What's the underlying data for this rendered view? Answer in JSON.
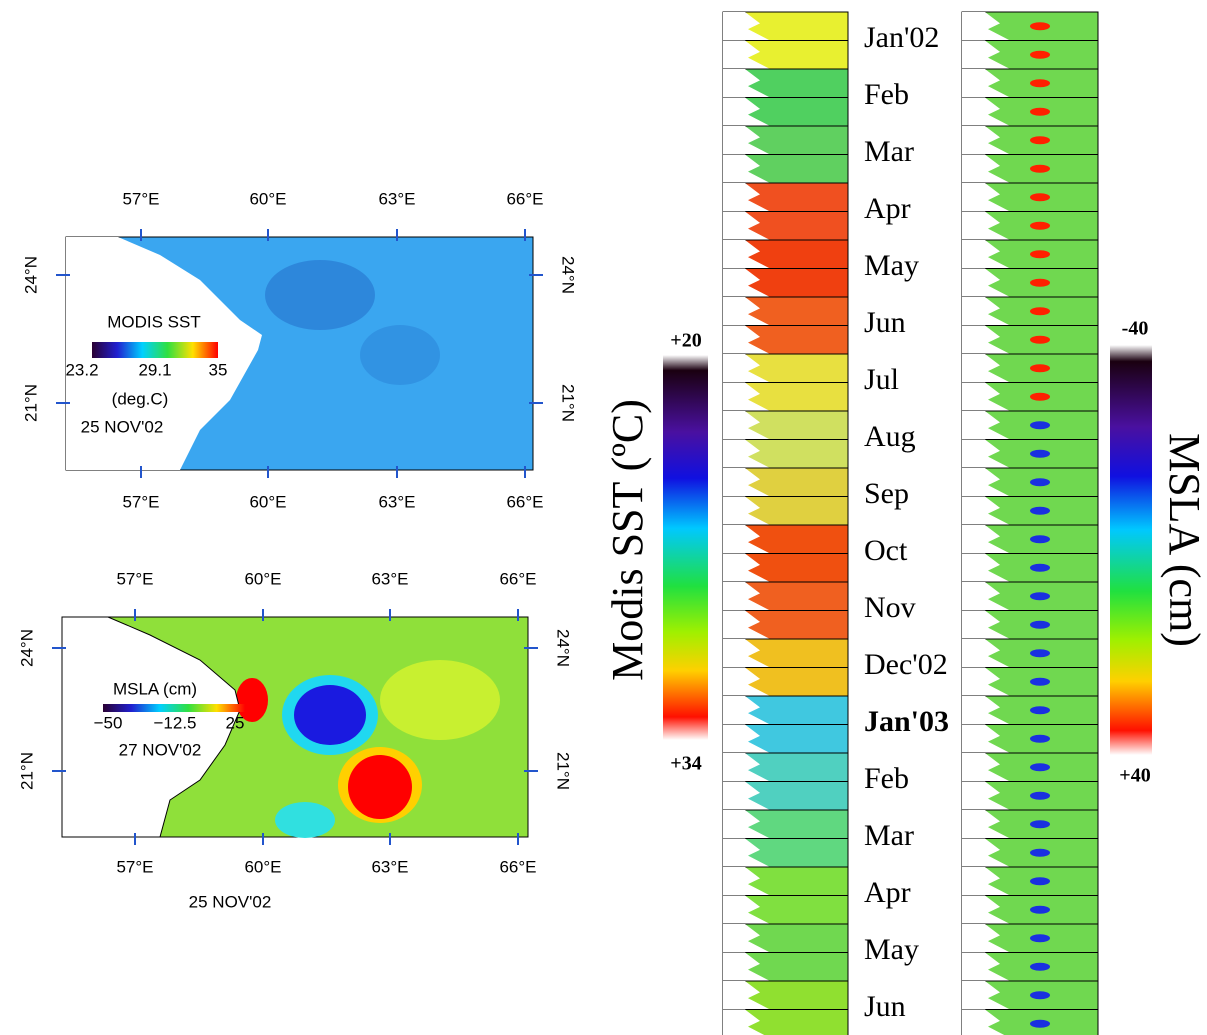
{
  "sst_map": {
    "title": "MODIS SST",
    "colorbar_labels": [
      "23.2",
      "29.1",
      "35"
    ],
    "unit": "(deg.C)",
    "date": "25 NOV'02",
    "lon_labels": [
      "57°E",
      "60°E",
      "63°E",
      "66°E"
    ],
    "lat_labels": [
      "24°N",
      "21°N"
    ]
  },
  "msla_map": {
    "title": "MSLA (cm)",
    "colorbar_labels": [
      "−50",
      "−12.5",
      "25"
    ],
    "date": "27 NOV'02",
    "caption": "25 NOV'02",
    "lon_labels": [
      "57°E",
      "60°E",
      "63°E",
      "66°E"
    ],
    "lat_labels": [
      "24°N",
      "21°N"
    ]
  },
  "sst_colorbar": {
    "label": "Modis SST (ºC)",
    "top": "+20",
    "bottom": "+34"
  },
  "msla_colorbar": {
    "label": "MSLA (cm)",
    "top": "-40",
    "bottom": "+40"
  },
  "months": [
    "Jan'02",
    "Feb",
    "Mar",
    "Apr",
    "May",
    "Jun",
    "Jul",
    "Aug",
    "Sep",
    "Oct",
    "Nov",
    "Dec'02",
    "Jan'03",
    "Feb",
    "Mar",
    "Apr",
    "May",
    "Jun"
  ]
}
